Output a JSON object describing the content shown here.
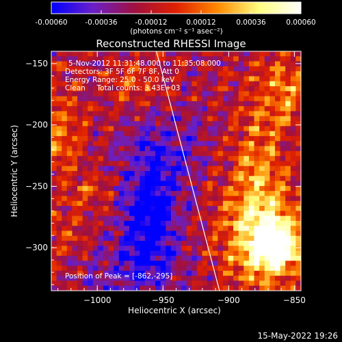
{
  "chart_data": {
    "type": "heatmap",
    "title": "Reconstructed RHESSI Image",
    "xlabel": "Heliocentric X (arcsec)",
    "ylabel": "Heliocentric Y (arcsec)",
    "xlim": [
      -1035,
      -845
    ],
    "ylim": [
      -335,
      -140
    ],
    "xticks": [
      -1000,
      -950,
      -900,
      -850
    ],
    "yticks": [
      -150,
      -200,
      -250,
      -300
    ],
    "colorbar": {
      "min": -0.0006,
      "max": 0.0006,
      "tick_values": [
        -0.0006,
        -0.00036,
        -0.00012,
        0.00012,
        0.00036,
        0.0006
      ],
      "tick_labels": [
        "-0.00060",
        "-0.00036",
        "-0.00012",
        "0.00012",
        "0.00036",
        "0.00060"
      ],
      "units": "(photons cm⁻² s⁻¹ asec⁻²)",
      "colors": [
        "#0000ff",
        "#6a20c8",
        "#a01040",
        "#e02000",
        "#ff8a00",
        "#ffff80",
        "#ffffff"
      ]
    },
    "annotations": {
      "time": "5-Nov-2012 11:31:48.000 to 11:35:08.000",
      "detectors": "Detectors: 3F 5F 6F 7F 8F, Att 0",
      "energy": "Energy Range: 25.0 - 50.0 keV",
      "clean": "Clean     Total counts: 3.43E+03",
      "peak": "Position of Peak = [-862,-295]"
    },
    "limb_line": {
      "x": [
        -955,
        -907
      ],
      "y": [
        -140,
        -335
      ]
    },
    "peak": {
      "x": -862,
      "y": -295
    },
    "sources": [
      {
        "x": -875,
        "y": -290,
        "amp": 0.9,
        "sx": 20,
        "sy": 30
      },
      {
        "x": -862,
        "y": -300,
        "amp": 0.7,
        "sx": 12,
        "sy": 12
      },
      {
        "x": -860,
        "y": -175,
        "amp": 0.45,
        "sx": 18,
        "sy": 25
      },
      {
        "x": -880,
        "y": -230,
        "amp": 0.35,
        "sx": 15,
        "sy": 25
      },
      {
        "x": -1030,
        "y": -205,
        "amp": 0.45,
        "sx": 12,
        "sy": 25
      },
      {
        "x": -975,
        "y": -165,
        "amp": 0.3,
        "sx": 15,
        "sy": 12
      },
      {
        "x": -1005,
        "y": -255,
        "amp": 0.3,
        "sx": 10,
        "sy": 8
      },
      {
        "x": -1025,
        "y": -290,
        "amp": 0.2,
        "sx": 12,
        "sy": 20
      },
      {
        "x": -960,
        "y": -280,
        "amp": -0.75,
        "sx": 14,
        "sy": 35
      },
      {
        "x": -945,
        "y": -220,
        "amp": -0.3,
        "sx": 20,
        "sy": 20
      },
      {
        "x": -990,
        "y": -320,
        "amp": -0.2,
        "sx": 20,
        "sy": 15
      }
    ]
  },
  "footer": {
    "date": "15-May-2022 19:26"
  }
}
